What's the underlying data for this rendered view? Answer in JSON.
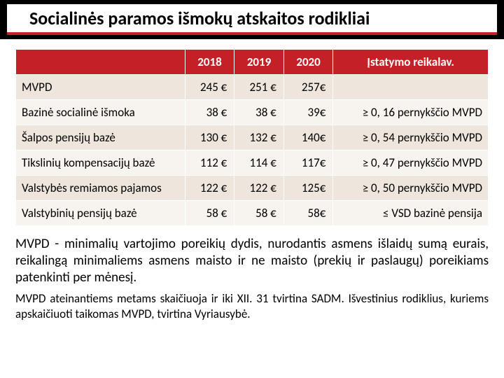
{
  "title": "Socialinės paramos išmokų atskaitos rodikliai",
  "table": {
    "headers": {
      "blank": "",
      "c1": "2018",
      "c2": "2019",
      "c3": "2020",
      "c4": "Įstatymo  reikalav."
    },
    "rows": [
      {
        "label": "MVPD",
        "c1": "245 €",
        "c2": "251 €",
        "c3": "257€",
        "c4": ""
      },
      {
        "label": "Bazinė socialinė išmoka",
        "c1": "38 €",
        "c2": "38 €",
        "c3": "39€",
        "c4": "≥ 0, 16 pernykščio MVPD"
      },
      {
        "label": "Šalpos pensijų bazė",
        "c1": "130 €",
        "c2": "132 €",
        "c3": "140€",
        "c4": "≥ 0, 54 pernykščio MVPD"
      },
      {
        "label": "Tikslinių kompensacijų bazė",
        "c1": "112 €",
        "c2": "114 €",
        "c3": "117€",
        "c4": "≥ 0, 47 pernykščio MVPD"
      },
      {
        "label": "Valstybės remiamos pajamos",
        "c1": "122 €",
        "c2": "122 €",
        "c3": "125€",
        "c4": "≥ 0, 50 pernykščio MVPD"
      },
      {
        "label": "Valstybinių pensijų bazė",
        "c1": "58 €",
        "c2": "58 €",
        "c3": "58€",
        "c4": "≤ VSD bazinė pensija"
      }
    ],
    "col_widths": [
      "240px",
      "70px",
      "70px",
      "70px",
      "220px"
    ],
    "stripe_colors": [
      "#eee6dc",
      "#f7f3ee"
    ],
    "header_bg": "#c42027",
    "header_fg": "#ffffff"
  },
  "desc1": "MVPD - minimalių vartojimo poreikių dydis, nurodantis asmens išlaidų sumą eurais, reikalingą minimaliems asmens maisto ir ne maisto (prekių ir paslaugų) poreikiams patenkinti per mėnesį.",
  "desc2": "MVPD ateinantiems metams skaičiuoja ir iki XII. 31 tvirtina SADM. Išvestinius rodiklius, kuriems apskaičiuoti taikomas MVPD, tvirtina Vyriausybė."
}
